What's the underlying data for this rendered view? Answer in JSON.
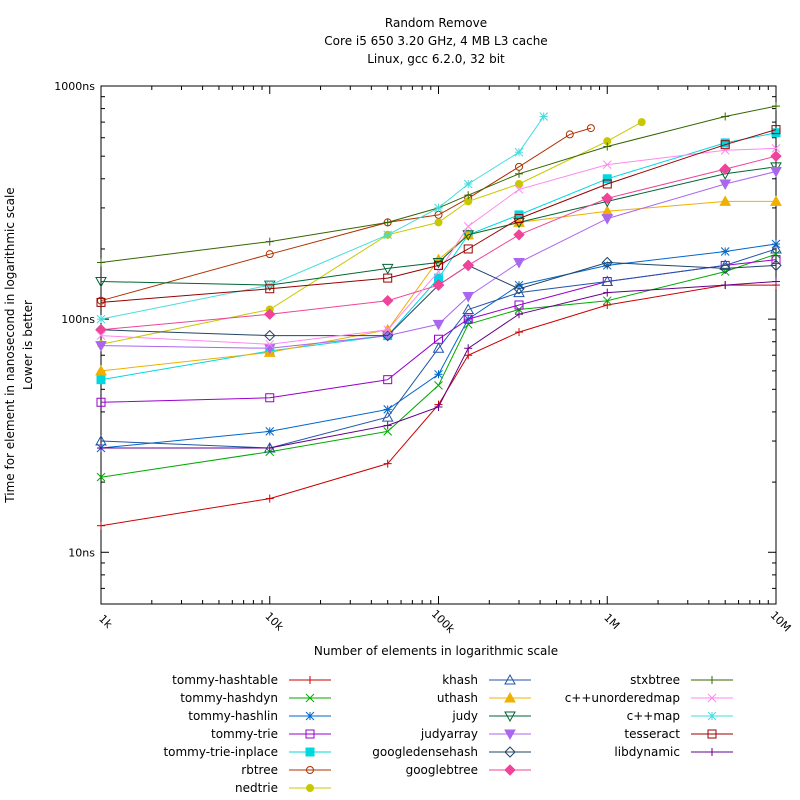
{
  "chart_data": {
    "type": "line",
    "title": "Random Remove",
    "subtitle": [
      "Core i5 650 3.20 GHz, 4 MB L3 cache",
      "Linux, gcc 6.2.0, 32 bit"
    ],
    "xlabel": "Number of elements in logarithmic scale",
    "ylabel": [
      "Time for element in nanosecond in logarithmic scale",
      "Lower is better"
    ],
    "x_scale": "log",
    "y_scale": "log",
    "xlim": [
      1000,
      10000000
    ],
    "ylim": [
      6,
      1000
    ],
    "x_ticks": [
      {
        "value": 1000,
        "label": "1k"
      },
      {
        "value": 10000,
        "label": "10k"
      },
      {
        "value": 100000,
        "label": "100k"
      },
      {
        "value": 1000000,
        "label": "1M"
      },
      {
        "value": 10000000,
        "label": "10M"
      }
    ],
    "y_ticks": [
      {
        "value": 10,
        "label": "10ns"
      },
      {
        "value": 100,
        "label": "100ns"
      },
      {
        "value": 1000,
        "label": "1000ns"
      }
    ],
    "grid": false,
    "legend_position": "bottom",
    "series": [
      {
        "name": "tommy-hashtable",
        "color": "#cc0000",
        "marker": "plus",
        "points": [
          [
            1000,
            13
          ],
          [
            10000,
            17
          ],
          [
            50000,
            24
          ],
          [
            100000,
            43
          ],
          [
            150000,
            70
          ],
          [
            300000,
            88
          ],
          [
            1000000,
            115
          ],
          [
            5000000,
            140
          ],
          [
            10000000,
            140
          ]
        ]
      },
      {
        "name": "tommy-hashdyn",
        "color": "#00aa00",
        "marker": "cross",
        "points": [
          [
            1000,
            21
          ],
          [
            10000,
            27
          ],
          [
            50000,
            33
          ],
          [
            100000,
            52
          ],
          [
            150000,
            95
          ],
          [
            300000,
            110
          ],
          [
            1000000,
            120
          ],
          [
            5000000,
            160
          ],
          [
            10000000,
            190
          ]
        ]
      },
      {
        "name": "tommy-hashlin",
        "color": "#0066cc",
        "marker": "star",
        "points": [
          [
            1000,
            28
          ],
          [
            10000,
            33
          ],
          [
            50000,
            41
          ],
          [
            100000,
            58
          ],
          [
            150000,
            100
          ],
          [
            300000,
            140
          ],
          [
            1000000,
            170
          ],
          [
            5000000,
            195
          ],
          [
            10000000,
            210
          ]
        ]
      },
      {
        "name": "tommy-trie",
        "color": "#9900cc",
        "marker": "square",
        "points": [
          [
            1000,
            44
          ],
          [
            10000,
            46
          ],
          [
            50000,
            55
          ],
          [
            100000,
            82
          ],
          [
            150000,
            100
          ],
          [
            300000,
            115
          ],
          [
            1000000,
            145
          ],
          [
            5000000,
            170
          ],
          [
            10000000,
            180
          ]
        ]
      },
      {
        "name": "tommy-trie-inplace",
        "color": "#00d8e0",
        "marker": "filled-square",
        "points": [
          [
            1000,
            55
          ],
          [
            10000,
            73
          ],
          [
            50000,
            85
          ],
          [
            100000,
            150
          ],
          [
            150000,
            230
          ],
          [
            300000,
            280
          ],
          [
            1000000,
            400
          ],
          [
            5000000,
            570
          ],
          [
            10000000,
            630
          ]
        ]
      },
      {
        "name": "rbtree",
        "color": "#b03000",
        "marker": "circle",
        "points": [
          [
            1000,
            120
          ],
          [
            10000,
            190
          ],
          [
            50000,
            260
          ],
          [
            100000,
            280
          ],
          [
            150000,
            330
          ],
          [
            300000,
            450
          ],
          [
            600000,
            620
          ],
          [
            800000,
            660
          ]
        ]
      },
      {
        "name": "nedtrie",
        "color": "#c8c800",
        "marker": "filled-circle",
        "points": [
          [
            1000,
            78
          ],
          [
            10000,
            110
          ],
          [
            50000,
            230
          ],
          [
            100000,
            260
          ],
          [
            150000,
            320
          ],
          [
            300000,
            380
          ],
          [
            1000000,
            580
          ],
          [
            1600000,
            700
          ]
        ]
      },
      {
        "name": "khash",
        "color": "#2255aa",
        "marker": "triangle",
        "points": [
          [
            1000,
            30
          ],
          [
            10000,
            28
          ],
          [
            50000,
            38
          ],
          [
            100000,
            75
          ],
          [
            150000,
            110
          ],
          [
            300000,
            130
          ],
          [
            1000000,
            145
          ],
          [
            5000000,
            170
          ],
          [
            10000000,
            200
          ]
        ]
      },
      {
        "name": "uthash",
        "color": "#f0b000",
        "marker": "filled-triangle",
        "points": [
          [
            1000,
            60
          ],
          [
            10000,
            72
          ],
          [
            50000,
            90
          ],
          [
            100000,
            180
          ],
          [
            150000,
            230
          ],
          [
            300000,
            260
          ],
          [
            1000000,
            290
          ],
          [
            5000000,
            320
          ],
          [
            10000000,
            320
          ]
        ]
      },
      {
        "name": "judy",
        "color": "#006633",
        "marker": "down-triangle",
        "points": [
          [
            1000,
            145
          ],
          [
            10000,
            140
          ],
          [
            50000,
            165
          ],
          [
            100000,
            175
          ],
          [
            150000,
            230
          ],
          [
            300000,
            260
          ],
          [
            1000000,
            320
          ],
          [
            5000000,
            420
          ],
          [
            10000000,
            450
          ]
        ]
      },
      {
        "name": "judyarray",
        "color": "#aa66ee",
        "marker": "filled-down-triangle",
        "points": [
          [
            1000,
            77
          ],
          [
            10000,
            75
          ],
          [
            50000,
            85
          ],
          [
            100000,
            95
          ],
          [
            150000,
            125
          ],
          [
            300000,
            175
          ],
          [
            1000000,
            270
          ],
          [
            5000000,
            380
          ],
          [
            10000000,
            430
          ]
        ]
      },
      {
        "name": "googledensehash",
        "color": "#224466",
        "marker": "diamond",
        "points": [
          [
            1000,
            90
          ],
          [
            10000,
            85
          ],
          [
            50000,
            85
          ],
          [
            100000,
            140
          ],
          [
            150000,
            170
          ],
          [
            300000,
            135
          ],
          [
            1000000,
            175
          ],
          [
            5000000,
            165
          ],
          [
            10000000,
            170
          ]
        ]
      },
      {
        "name": "googlebtree",
        "color": "#ee4499",
        "marker": "filled-diamond",
        "points": [
          [
            1000,
            90
          ],
          [
            10000,
            105
          ],
          [
            50000,
            120
          ],
          [
            100000,
            140
          ],
          [
            150000,
            170
          ],
          [
            300000,
            230
          ],
          [
            1000000,
            330
          ],
          [
            5000000,
            440
          ],
          [
            10000000,
            500
          ]
        ]
      },
      {
        "name": "stxbtree",
        "color": "#336600",
        "marker": "plus",
        "points": [
          [
            1000,
            175
          ],
          [
            10000,
            215
          ],
          [
            50000,
            260
          ],
          [
            100000,
            300
          ],
          [
            150000,
            340
          ],
          [
            300000,
            420
          ],
          [
            1000000,
            550
          ],
          [
            5000000,
            740
          ],
          [
            10000000,
            820
          ]
        ]
      },
      {
        "name": "c++unorderedmap",
        "color": "#ff88ee",
        "marker": "cross",
        "points": [
          [
            1000,
            85
          ],
          [
            10000,
            78
          ],
          [
            50000,
            90
          ],
          [
            100000,
            160
          ],
          [
            150000,
            250
          ],
          [
            300000,
            360
          ],
          [
            1000000,
            460
          ],
          [
            5000000,
            530
          ],
          [
            10000000,
            540
          ]
        ]
      },
      {
        "name": "c++map",
        "color": "#44dddd",
        "marker": "star",
        "points": [
          [
            1000,
            100
          ],
          [
            10000,
            140
          ],
          [
            50000,
            230
          ],
          [
            100000,
            300
          ],
          [
            150000,
            380
          ],
          [
            300000,
            520
          ],
          [
            420000,
            740
          ]
        ]
      },
      {
        "name": "tesseract",
        "color": "#990000",
        "marker": "square",
        "points": [
          [
            1000,
            118
          ],
          [
            10000,
            135
          ],
          [
            50000,
            150
          ],
          [
            100000,
            170
          ],
          [
            150000,
            200
          ],
          [
            300000,
            270
          ],
          [
            1000000,
            380
          ],
          [
            5000000,
            560
          ],
          [
            10000000,
            650
          ]
        ]
      },
      {
        "name": "libdynamic",
        "color": "#660088",
        "marker": "plus",
        "points": [
          [
            1000,
            28
          ],
          [
            10000,
            28
          ],
          [
            50000,
            35
          ],
          [
            100000,
            42
          ],
          [
            150000,
            75
          ],
          [
            300000,
            105
          ],
          [
            1000000,
            130
          ],
          [
            5000000,
            140
          ],
          [
            10000000,
            145
          ]
        ]
      }
    ]
  }
}
